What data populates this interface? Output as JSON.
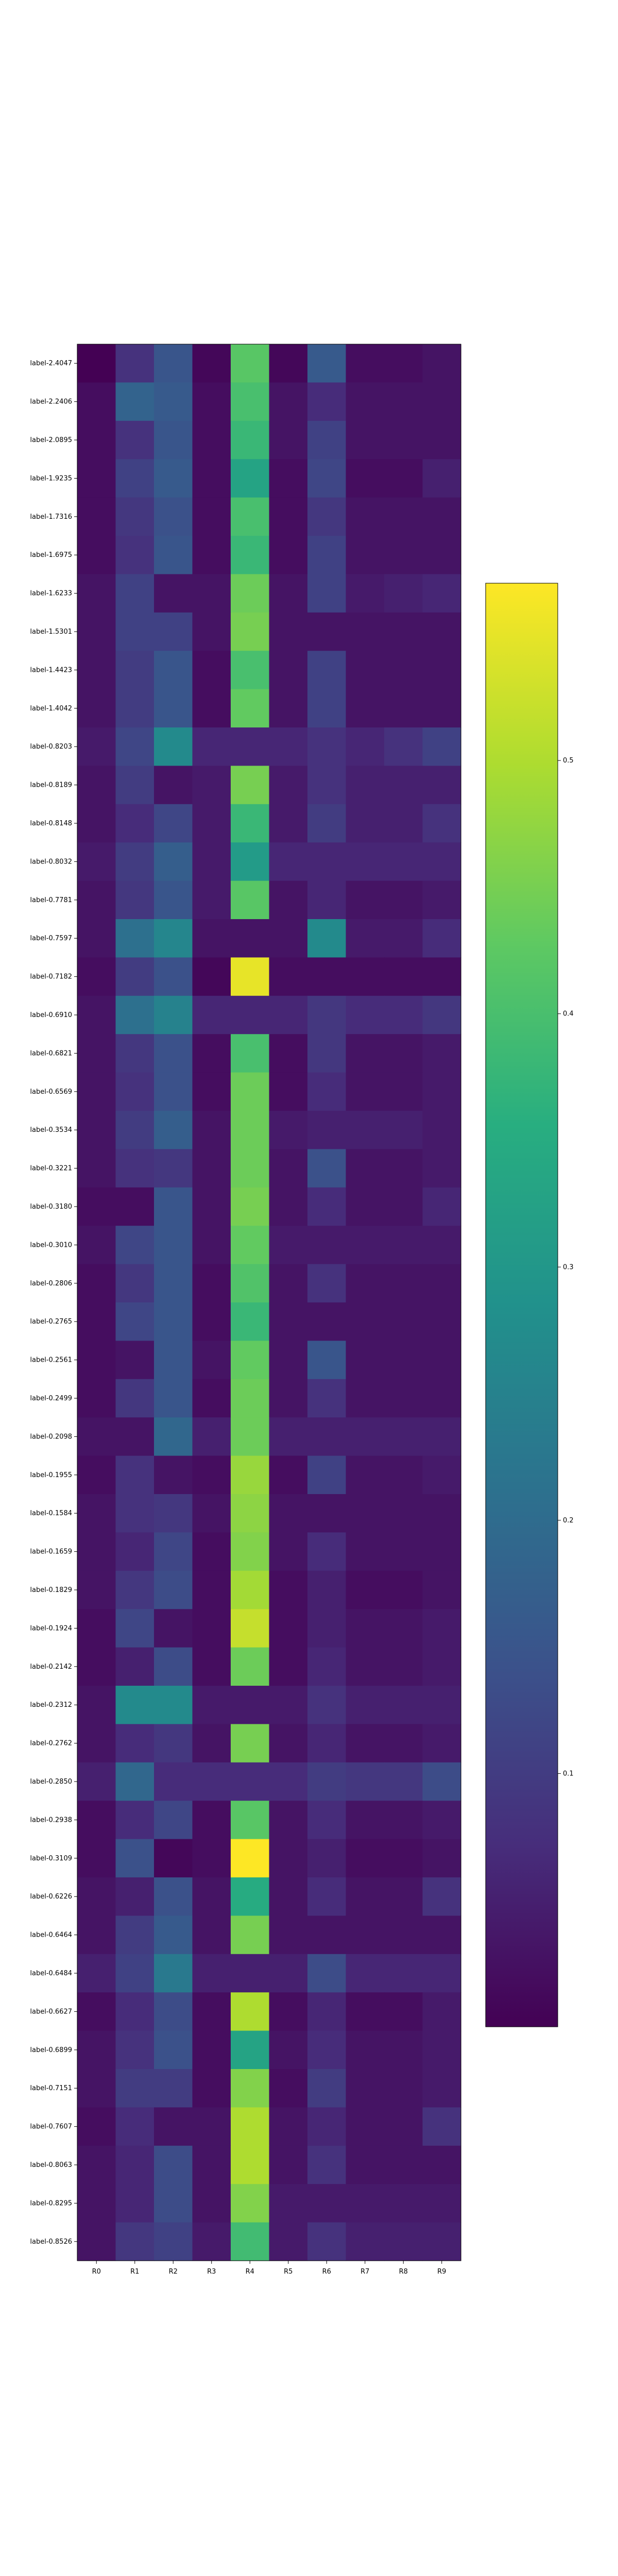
{
  "chart_data": {
    "type": "heatmap",
    "title": "",
    "xlabel": "",
    "ylabel": "",
    "colormap": "viridis",
    "vmin": 0.0,
    "vmax": 0.57,
    "colorbar": {
      "ticks": [
        "0.1",
        "0.2",
        "0.3",
        "0.4",
        "0.5"
      ],
      "values": [
        0.1,
        0.2,
        0.3,
        0.4,
        0.5
      ]
    },
    "columns": [
      "R0",
      "R1",
      "R2",
      "R3",
      "R4",
      "R5",
      "R6",
      "R7",
      "R8",
      "R9"
    ],
    "rows": [
      "label-2.4047",
      "label-2.2406",
      "label-2.0895",
      "label-1.9235",
      "label-1.7316",
      "label-1.6975",
      "label-1.6233",
      "label-1.5301",
      "label-1.4423",
      "label-1.4042",
      "label-0.8203",
      "label-0.8189",
      "label-0.8148",
      "label-0.8032",
      "label-0.7781",
      "label-0.7597",
      "label-0.7182",
      "label-0.6910",
      "label-0.6821",
      "label-0.6569",
      "label-0.3534",
      "label-0.3221",
      "label-0.3180",
      "label-0.3010",
      "label-0.2806",
      "label-0.2765",
      "label-0.2561",
      "label-0.2499",
      "label-0.2098",
      "label-0.1955",
      "label-0.1584",
      "label-0.1659",
      "label-0.1829",
      "label-0.1924",
      "label-0.2142",
      "label-0.2312",
      "label-0.2762",
      "label-0.2850",
      "label-0.2938",
      "label-0.3109",
      "label-0.6226",
      "label-0.6464",
      "label-0.6484",
      "label-0.6627",
      "label-0.6899",
      "label-0.7151",
      "label-0.7607",
      "label-0.8063",
      "label-0.8295",
      "label-0.8526"
    ],
    "values": [
      [
        0.0,
        0.08,
        0.15,
        0.01,
        0.42,
        0.01,
        0.16,
        0.02,
        0.02,
        0.03
      ],
      [
        0.02,
        0.18,
        0.16,
        0.02,
        0.4,
        0.03,
        0.07,
        0.03,
        0.03,
        0.03
      ],
      [
        0.02,
        0.08,
        0.15,
        0.02,
        0.38,
        0.03,
        0.11,
        0.03,
        0.03,
        0.03
      ],
      [
        0.02,
        0.11,
        0.16,
        0.02,
        0.33,
        0.02,
        0.12,
        0.02,
        0.02,
        0.05
      ],
      [
        0.02,
        0.09,
        0.14,
        0.02,
        0.4,
        0.02,
        0.09,
        0.03,
        0.03,
        0.03
      ],
      [
        0.02,
        0.08,
        0.15,
        0.02,
        0.38,
        0.02,
        0.11,
        0.03,
        0.03,
        0.03
      ],
      [
        0.03,
        0.11,
        0.03,
        0.03,
        0.44,
        0.03,
        0.11,
        0.04,
        0.05,
        0.06
      ],
      [
        0.03,
        0.11,
        0.11,
        0.03,
        0.45,
        0.03,
        0.03,
        0.03,
        0.03,
        0.03
      ],
      [
        0.03,
        0.1,
        0.15,
        0.02,
        0.4,
        0.03,
        0.11,
        0.03,
        0.03,
        0.03
      ],
      [
        0.03,
        0.1,
        0.15,
        0.02,
        0.43,
        0.03,
        0.11,
        0.03,
        0.03,
        0.03
      ],
      [
        0.04,
        0.12,
        0.27,
        0.06,
        0.06,
        0.06,
        0.08,
        0.06,
        0.08,
        0.11
      ],
      [
        0.03,
        0.1,
        0.03,
        0.04,
        0.45,
        0.04,
        0.08,
        0.05,
        0.05,
        0.05
      ],
      [
        0.03,
        0.07,
        0.12,
        0.04,
        0.38,
        0.04,
        0.1,
        0.05,
        0.05,
        0.08
      ],
      [
        0.04,
        0.1,
        0.17,
        0.04,
        0.31,
        0.06,
        0.06,
        0.06,
        0.06,
        0.06
      ],
      [
        0.03,
        0.09,
        0.15,
        0.04,
        0.42,
        0.03,
        0.06,
        0.03,
        0.03,
        0.04
      ],
      [
        0.03,
        0.21,
        0.26,
        0.03,
        0.03,
        0.03,
        0.27,
        0.04,
        0.04,
        0.07
      ],
      [
        0.02,
        0.1,
        0.14,
        0.01,
        0.55,
        0.02,
        0.02,
        0.02,
        0.02,
        0.02
      ],
      [
        0.03,
        0.21,
        0.25,
        0.06,
        0.06,
        0.06,
        0.09,
        0.07,
        0.07,
        0.09
      ],
      [
        0.03,
        0.09,
        0.14,
        0.02,
        0.4,
        0.02,
        0.09,
        0.03,
        0.03,
        0.04
      ],
      [
        0.03,
        0.08,
        0.14,
        0.02,
        0.44,
        0.02,
        0.07,
        0.03,
        0.03,
        0.04
      ],
      [
        0.03,
        0.1,
        0.17,
        0.03,
        0.44,
        0.04,
        0.05,
        0.05,
        0.05,
        0.04
      ],
      [
        0.03,
        0.08,
        0.09,
        0.03,
        0.44,
        0.03,
        0.14,
        0.03,
        0.03,
        0.04
      ],
      [
        0.02,
        0.02,
        0.15,
        0.03,
        0.45,
        0.03,
        0.07,
        0.03,
        0.03,
        0.06
      ],
      [
        0.03,
        0.12,
        0.15,
        0.03,
        0.43,
        0.04,
        0.04,
        0.04,
        0.04,
        0.04
      ],
      [
        0.02,
        0.09,
        0.15,
        0.02,
        0.41,
        0.03,
        0.08,
        0.03,
        0.03,
        0.03
      ],
      [
        0.02,
        0.12,
        0.15,
        0.02,
        0.38,
        0.03,
        0.03,
        0.03,
        0.03,
        0.03
      ],
      [
        0.02,
        0.03,
        0.15,
        0.03,
        0.43,
        0.03,
        0.15,
        0.03,
        0.03,
        0.03
      ],
      [
        0.02,
        0.09,
        0.15,
        0.02,
        0.44,
        0.03,
        0.08,
        0.03,
        0.03,
        0.03
      ],
      [
        0.03,
        0.03,
        0.19,
        0.05,
        0.44,
        0.05,
        0.05,
        0.05,
        0.05,
        0.05
      ],
      [
        0.02,
        0.08,
        0.03,
        0.02,
        0.48,
        0.02,
        0.11,
        0.03,
        0.03,
        0.04
      ],
      [
        0.03,
        0.08,
        0.09,
        0.03,
        0.47,
        0.03,
        0.03,
        0.03,
        0.03,
        0.03
      ],
      [
        0.03,
        0.06,
        0.12,
        0.02,
        0.46,
        0.03,
        0.07,
        0.03,
        0.03,
        0.03
      ],
      [
        0.03,
        0.09,
        0.13,
        0.02,
        0.49,
        0.02,
        0.05,
        0.02,
        0.02,
        0.03
      ],
      [
        0.02,
        0.12,
        0.03,
        0.02,
        0.52,
        0.02,
        0.05,
        0.03,
        0.03,
        0.04
      ],
      [
        0.02,
        0.05,
        0.13,
        0.02,
        0.44,
        0.02,
        0.06,
        0.03,
        0.03,
        0.04
      ],
      [
        0.03,
        0.27,
        0.27,
        0.04,
        0.04,
        0.04,
        0.08,
        0.05,
        0.05,
        0.05
      ],
      [
        0.03,
        0.07,
        0.09,
        0.03,
        0.45,
        0.03,
        0.06,
        0.03,
        0.03,
        0.04
      ],
      [
        0.05,
        0.19,
        0.07,
        0.07,
        0.07,
        0.07,
        0.1,
        0.09,
        0.09,
        0.13
      ],
      [
        0.02,
        0.07,
        0.12,
        0.02,
        0.42,
        0.03,
        0.07,
        0.03,
        0.03,
        0.04
      ],
      [
        0.02,
        0.14,
        0.01,
        0.02,
        0.57,
        0.03,
        0.05,
        0.02,
        0.02,
        0.03
      ],
      [
        0.03,
        0.05,
        0.14,
        0.03,
        0.35,
        0.03,
        0.07,
        0.03,
        0.03,
        0.08
      ],
      [
        0.03,
        0.1,
        0.16,
        0.03,
        0.45,
        0.03,
        0.03,
        0.03,
        0.03,
        0.03
      ],
      [
        0.05,
        0.11,
        0.23,
        0.05,
        0.05,
        0.05,
        0.13,
        0.06,
        0.06,
        0.06
      ],
      [
        0.02,
        0.07,
        0.13,
        0.02,
        0.5,
        0.02,
        0.06,
        0.02,
        0.02,
        0.04
      ],
      [
        0.03,
        0.08,
        0.14,
        0.02,
        0.33,
        0.03,
        0.07,
        0.03,
        0.03,
        0.04
      ],
      [
        0.03,
        0.1,
        0.1,
        0.02,
        0.46,
        0.02,
        0.1,
        0.03,
        0.03,
        0.04
      ],
      [
        0.02,
        0.07,
        0.03,
        0.03,
        0.5,
        0.03,
        0.06,
        0.03,
        0.03,
        0.08
      ],
      [
        0.03,
        0.06,
        0.13,
        0.03,
        0.5,
        0.03,
        0.08,
        0.03,
        0.03,
        0.03
      ],
      [
        0.03,
        0.06,
        0.13,
        0.03,
        0.46,
        0.04,
        0.04,
        0.04,
        0.04,
        0.04
      ],
      [
        0.03,
        0.09,
        0.11,
        0.04,
        0.39,
        0.04,
        0.08,
        0.05,
        0.05,
        0.05
      ]
    ]
  }
}
